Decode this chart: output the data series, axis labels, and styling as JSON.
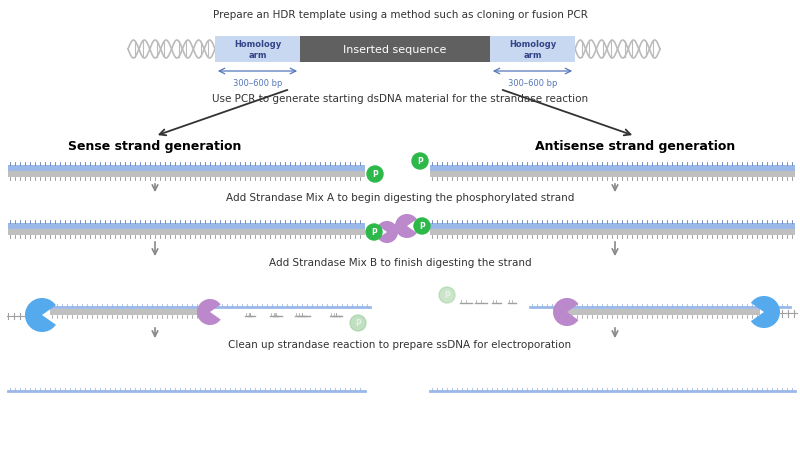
{
  "title": "Prepare an HDR template using a method such as cloning or fusion PCR",
  "bg_color": "#ffffff",
  "dna_blue": "#9ab8e8",
  "dna_gray": "#c0c0c0",
  "homology_fill": "#c8d8f0",
  "inserted_fill": "#606060",
  "homology_text_color": "#334488",
  "inserted_text_color": "#ffffff",
  "green_circle": "#2db84a",
  "purple_enzyme": "#bb88cc",
  "blue_enzyme": "#55aaee",
  "light_green_circle": "#99cc99",
  "arrow_color": "#888888",
  "text_color": "#333333",
  "step_text": [
    "Use PCR to generate starting dsDNA material for the strandase reaction",
    "Add Strandase Mix A to begin digesting the phosphorylated strand",
    "Add Strandase Mix B to finish digesting the strand",
    "Clean up strandase reaction to prepare ssDNA for electroporation"
  ],
  "section_titles": [
    "Sense strand generation",
    "Antisense strand generation"
  ],
  "bp_label": "300–600 bp"
}
